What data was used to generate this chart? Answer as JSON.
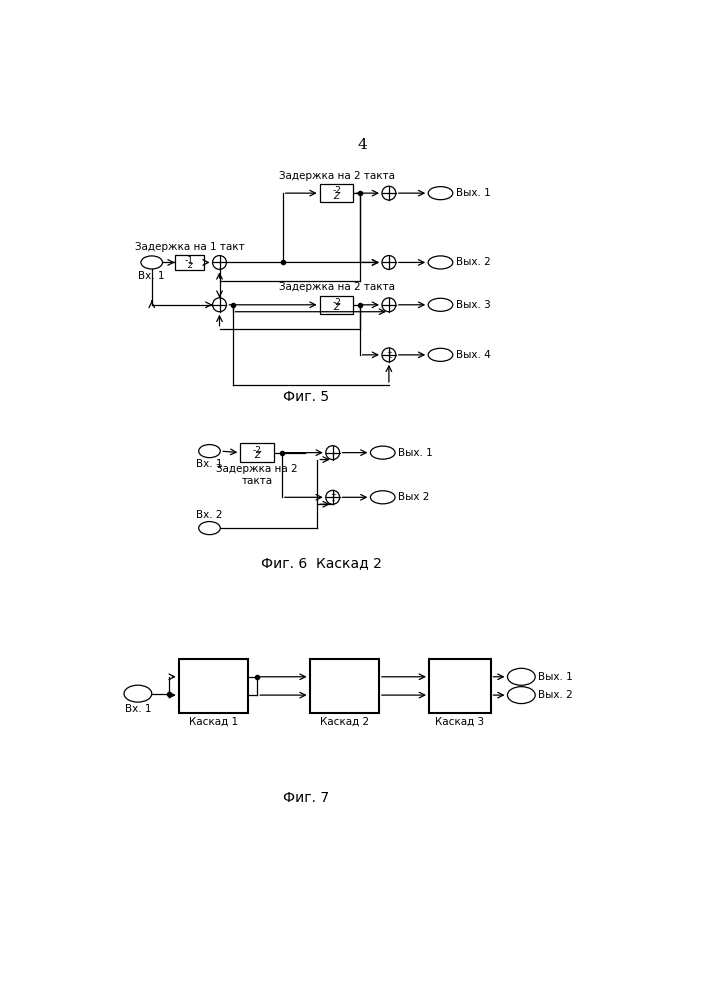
{
  "page_number": "4",
  "fig5_caption": "Фиг. 5",
  "fig6_caption": "Фиг. 6  Каскад 2",
  "fig7_caption": "Фиг. 7",
  "background": "#ffffff",
  "line_color": "#000000",
  "text_color": "#000000",
  "font_size": 7.5,
  "fig5_label_delay1": "Задержка на 1 такт",
  "fig5_label_delay2a": "Задержка на 2 такта",
  "fig5_label_delay2b": "Задержка на 2 такта",
  "fig5_label_vx1": "Вх. 1",
  "fig5_label_vyx1": "Вых. 1",
  "fig5_label_vyx2": "Вых. 2",
  "fig5_label_vyx3": "Вых. 3",
  "fig5_label_vyx4": "Вых. 4",
  "fig6_label_vx1": "Вх. 1",
  "fig6_label_vx2": "Вх. 2",
  "fig6_label_vyx1": "Вых. 1",
  "fig6_label_vyx2": "Вых 2",
  "fig6_label_delay": "Задержка на 2\nтакта",
  "fig7_label_vx1": "Вх. 1",
  "fig7_label_vyx1": "Вых. 1",
  "fig7_label_vyx2": "Вых. 2",
  "fig7_label_kaskad1": "Каскад 1",
  "fig7_label_kaskad2": "Каскад 2",
  "fig7_label_kaskad3": "Каскад 3",
  "delay_box_label": "-2\nZ",
  "delay1_box_label": "-1\nz"
}
